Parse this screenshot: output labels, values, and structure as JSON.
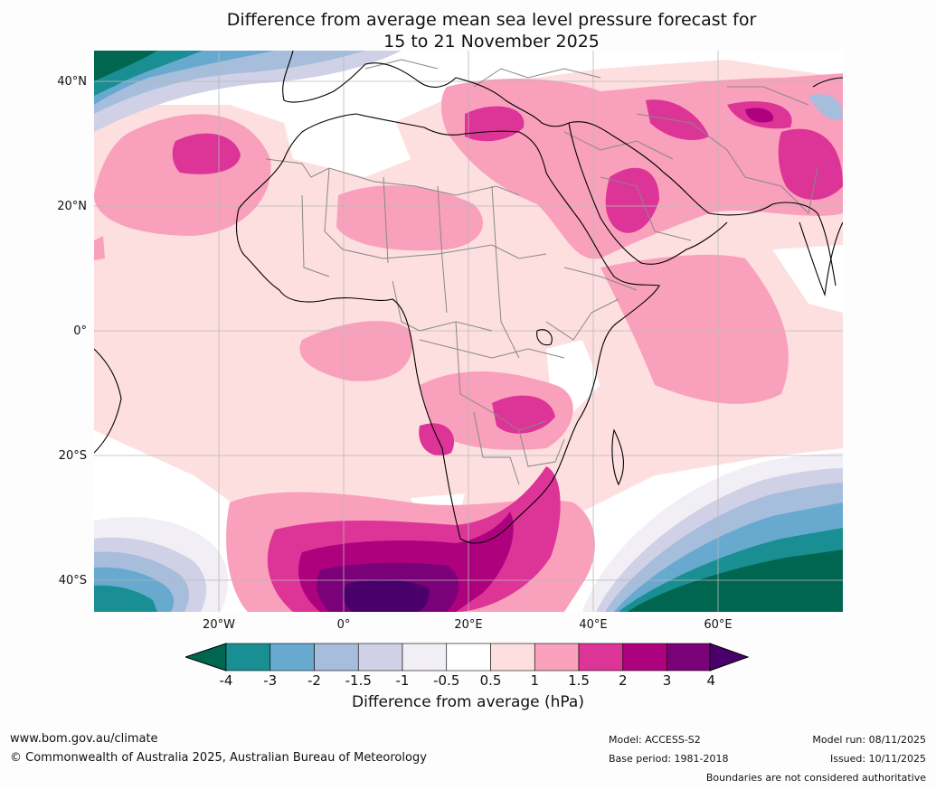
{
  "title": {
    "line1": "Difference from average mean sea level pressure forecast for",
    "line2": "15 to 21 November 2025"
  },
  "map": {
    "lat_labels": [
      "40°N",
      "20°N",
      "0°",
      "20°S",
      "40°S"
    ],
    "lon_labels": [
      "20°W",
      "0°",
      "20°E",
      "40°E",
      "60°E"
    ]
  },
  "colorbar": {
    "ticks": [
      "-4",
      "-3",
      "-2",
      "-1.5",
      "-1",
      "-0.5",
      "0.5",
      "1",
      "1.5",
      "2",
      "3",
      "4"
    ],
    "colors": [
      "#00664f",
      "#1a8f93",
      "#67a9cf",
      "#a6bddb",
      "#d0d1e6",
      "#f1eef6",
      "#ffffff",
      "#fddfe0",
      "#f9a0bc",
      "#dd3497",
      "#ae017e",
      "#7a0177",
      "#49006a"
    ],
    "label": "Difference from average (hPa)"
  },
  "footer": {
    "website": "www.bom.gov.au/climate",
    "copyright": "© Commonwealth of Australia 2025, Australian Bureau of Meteorology",
    "model": "Model: ACCESS-S2",
    "base_period": "Base period: 1981-2018",
    "model_run": "Model run: 08/11/2025",
    "issued": "Issued: 10/11/2025",
    "disclaimer": "Boundaries are not considered authoritative"
  }
}
